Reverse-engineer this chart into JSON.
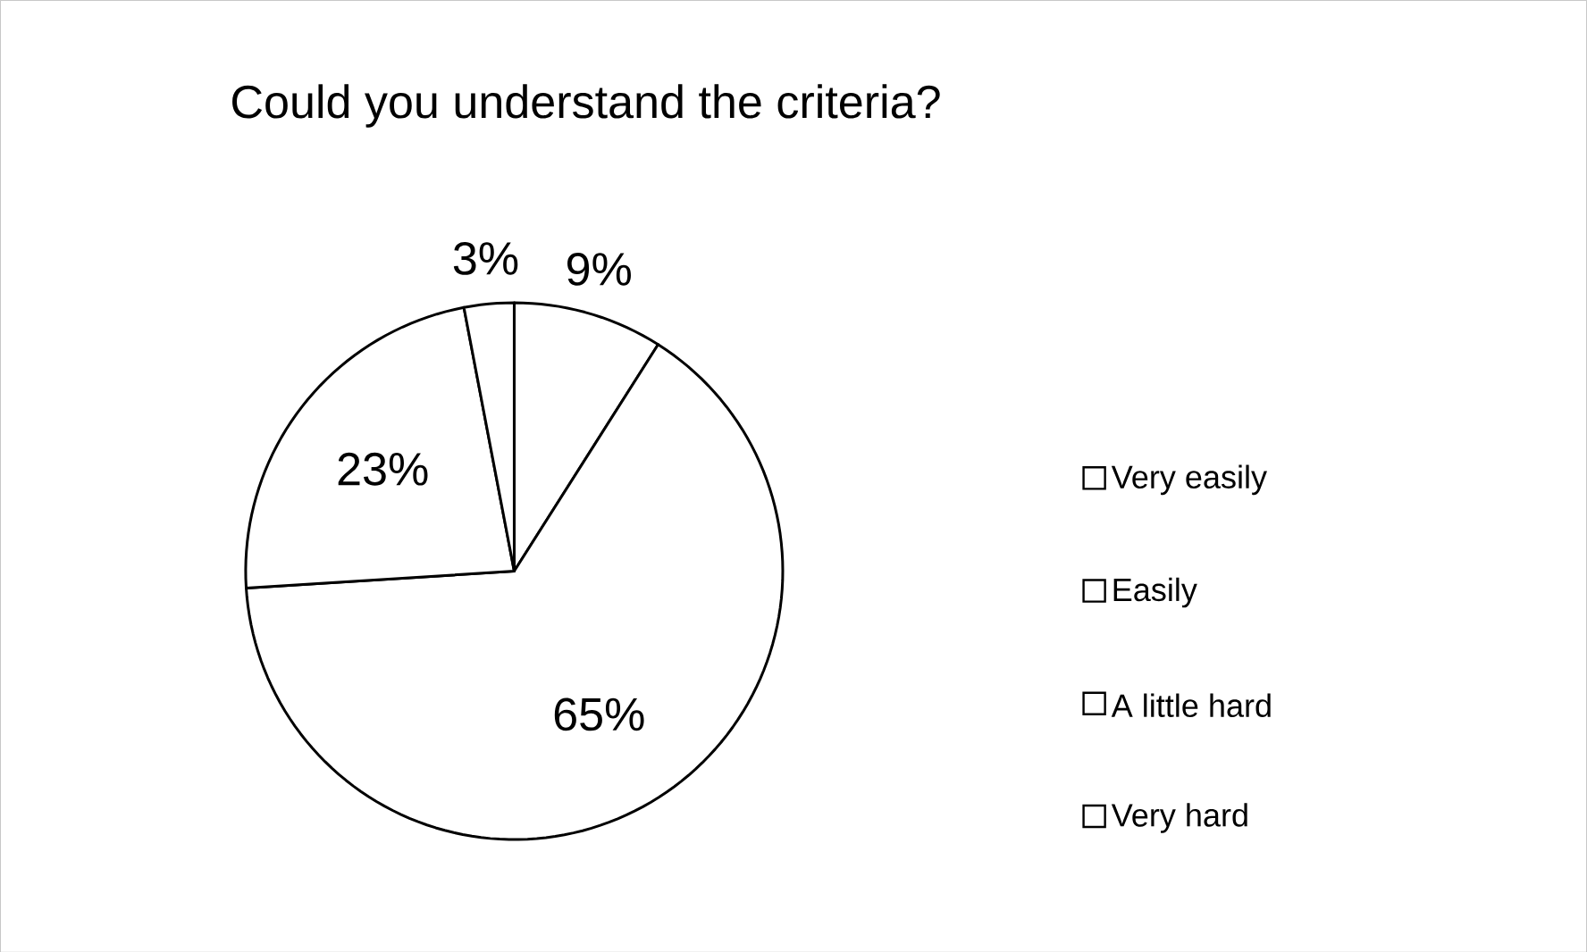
{
  "chart_data": {
    "type": "pie",
    "title": "Could you understand the criteria?",
    "categories": [
      "Very easily",
      "Easily",
      "A little hard",
      "Very hard"
    ],
    "values": [
      9,
      65,
      23,
      3
    ],
    "colors": [
      "#ffffff",
      "#ffffff",
      "#ffffff",
      "#ffffff"
    ],
    "value_labels": [
      "9%",
      "65%",
      "23%",
      "3%"
    ],
    "legend": "right"
  }
}
